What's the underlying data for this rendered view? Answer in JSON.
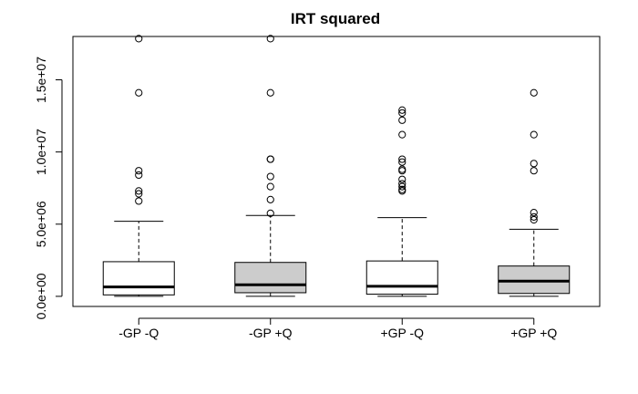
{
  "chart_data": {
    "type": "boxplot",
    "title": "IRT squared",
    "xlabel": "",
    "ylabel": "",
    "ylim": [
      -700000,
      18000000
    ],
    "yticks": [
      0,
      5000000,
      10000000,
      15000000
    ],
    "ytick_labels": [
      "0.0e+00",
      "5.0e+06",
      "1.0e+07",
      "1.5e+07"
    ],
    "categories": [
      "-GP -Q",
      "-GP +Q",
      "+GP -Q",
      "+GP +Q"
    ],
    "box_colors": [
      "#ffffff",
      "#cccccc",
      "#ffffff",
      "#cccccc"
    ],
    "boxes": [
      {
        "label": "-GP -Q",
        "whisker_low": 0,
        "q1": 100000,
        "median": 650000,
        "q3": 2400000,
        "whisker_high": 5200000,
        "outliers": [
          17850000,
          14100000,
          8700000,
          8400000,
          7300000,
          7100000,
          6600000
        ]
      },
      {
        "label": "-GP +Q",
        "whisker_low": 0,
        "q1": 250000,
        "median": 800000,
        "q3": 2350000,
        "whisker_high": 5600000,
        "outliers": [
          17850000,
          14100000,
          9500000,
          9500000,
          8300000,
          7600000,
          6700000,
          5750000
        ]
      },
      {
        "label": "+GP -Q",
        "whisker_low": 0,
        "q1": 150000,
        "median": 700000,
        "q3": 2450000,
        "whisker_high": 5450000,
        "outliers": [
          12900000,
          12700000,
          12200000,
          11200000,
          9500000,
          9300000,
          8800000,
          8700000,
          8100000,
          7800000,
          7600000,
          7400000,
          7300000
        ]
      },
      {
        "label": "+GP +Q",
        "whisker_low": 0,
        "q1": 200000,
        "median": 1050000,
        "q3": 2100000,
        "whisker_high": 4650000,
        "outliers": [
          14100000,
          11200000,
          9200000,
          8700000,
          5800000,
          5500000,
          5300000
        ]
      }
    ],
    "grid": false,
    "legend": "none"
  }
}
